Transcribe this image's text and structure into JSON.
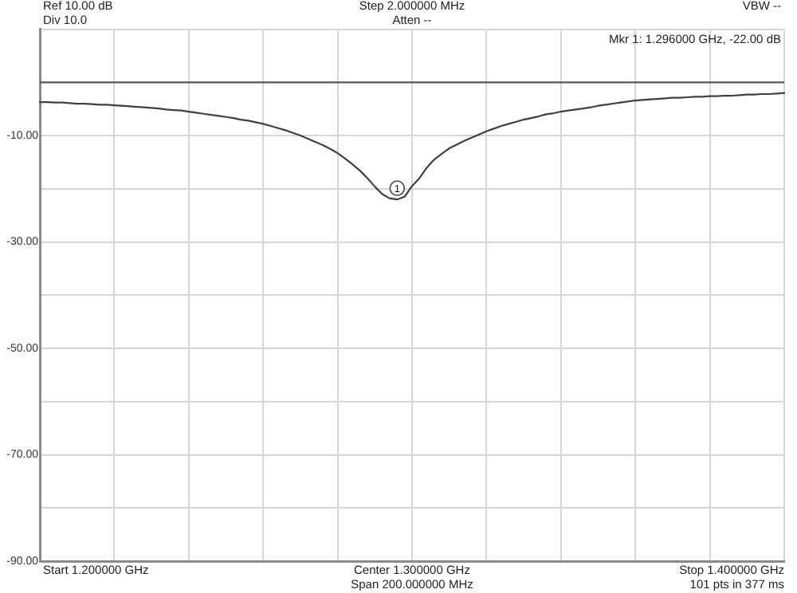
{
  "chart_data": {
    "type": "line",
    "categories": [
      null,
      null,
      null,
      null,
      null,
      null,
      null,
      null,
      null,
      null,
      null,
      null,
      null,
      null,
      null,
      null,
      null,
      null,
      null,
      null,
      null,
      null,
      null,
      null,
      null,
      null,
      null,
      null,
      null,
      null,
      null,
      null,
      null,
      null,
      null,
      null,
      null,
      null,
      null,
      null,
      null,
      null,
      null,
      null,
      null,
      null,
      null,
      null,
      null,
      null,
      null,
      null,
      null,
      null,
      null,
      null,
      null,
      null,
      null,
      null,
      null,
      null,
      null,
      null,
      null,
      null,
      null,
      null,
      null,
      null,
      null,
      null,
      null,
      null,
      null,
      null,
      null,
      null,
      null,
      null,
      null,
      null,
      null,
      null,
      null,
      null,
      null,
      null,
      null,
      null,
      null,
      null,
      null,
      null,
      null,
      null,
      null,
      null,
      null,
      null,
      null
    ],
    "values": [
      -3.7,
      -3.7,
      -3.8,
      -3.8,
      -3.9,
      -4.0,
      -4.0,
      -4.1,
      -4.2,
      -4.2,
      -4.3,
      -4.4,
      -4.5,
      -4.6,
      -4.7,
      -4.8,
      -4.9,
      -5.1,
      -5.2,
      -5.3,
      -5.5,
      -5.7,
      -5.9,
      -6.1,
      -6.3,
      -6.5,
      -6.7,
      -7.0,
      -7.2,
      -7.5,
      -7.8,
      -8.2,
      -8.6,
      -9.0,
      -9.5,
      -10.0,
      -10.6,
      -11.2,
      -11.8,
      -12.5,
      -13.3,
      -14.3,
      -15.4,
      -16.6,
      -18.0,
      -19.6,
      -21.0,
      -21.8,
      -22.0,
      -21.5,
      -19.5,
      -18.0,
      -16.0,
      -14.5,
      -13.4,
      -12.4,
      -11.7,
      -11.0,
      -10.4,
      -9.8,
      -9.2,
      -8.7,
      -8.2,
      -7.8,
      -7.4,
      -7.0,
      -6.7,
      -6.4,
      -6.0,
      -5.8,
      -5.5,
      -5.3,
      -5.1,
      -4.9,
      -4.7,
      -4.4,
      -4.2,
      -4.0,
      -3.8,
      -3.6,
      -3.4,
      -3.3,
      -3.2,
      -3.1,
      -3.0,
      -2.9,
      -2.9,
      -2.8,
      -2.7,
      -2.7,
      -2.6,
      -2.6,
      -2.5,
      -2.5,
      -2.4,
      -2.3,
      -2.3,
      -2.2,
      -2.2,
      -2.1,
      -2.0
    ],
    "color": "#404040",
    "ylim": [
      -90,
      10
    ],
    "yticks": [
      {
        "value": 10,
        "label": null
      },
      {
        "value": 0,
        "label": null
      },
      {
        "value": -10,
        "label": "-10.00"
      },
      {
        "value": -20,
        "label": null
      },
      {
        "value": -30,
        "label": "-30.00"
      },
      {
        "value": -40,
        "label": null
      },
      {
        "value": -50,
        "label": "-50.00"
      },
      {
        "value": -60,
        "label": null
      },
      {
        "value": -70,
        "label": "-70.00"
      },
      {
        "value": -80,
        "label": null
      },
      {
        "value": -90,
        "label": "-90.00"
      }
    ],
    "grid": true,
    "ref_lines": [
      {
        "axis": "y",
        "value": 0,
        "color": "#5a5a5a"
      }
    ],
    "annotations": [
      "Ref 10.00 dB",
      "Div 10.0",
      "Step 2.000000 MHz",
      "Atten --",
      "VBW --",
      "Mkr 1: 1.296000 GHz, -22.00 dB",
      "Start 1.200000 GHz",
      "Center 1.300000 GHz",
      "Span 200.000000 MHz",
      "Stop 1.400000 GHz",
      "101 pts in 377 ms",
      {
        "text": "1",
        "y": -22
      }
    ]
  }
}
